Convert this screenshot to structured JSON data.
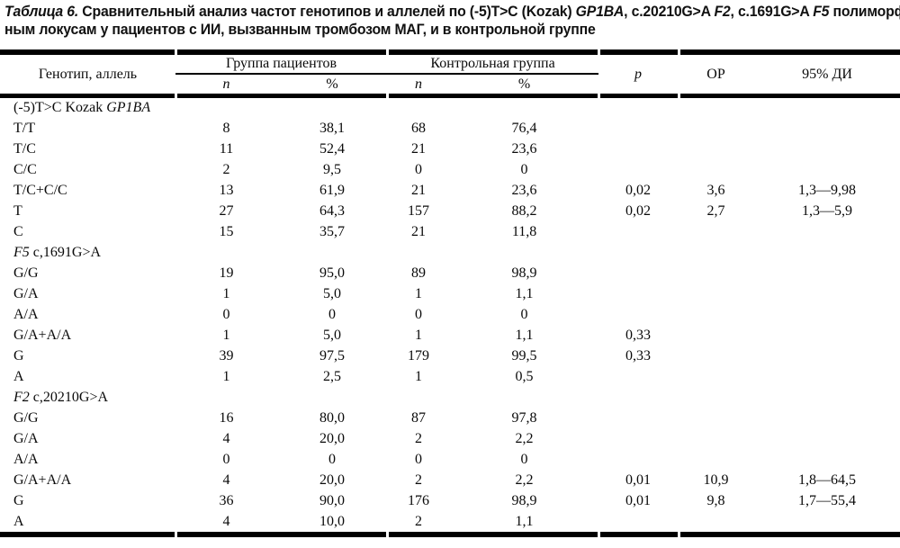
{
  "caption": {
    "lines": [
      [
        {
          "t": "Таблица 6.",
          "it": true,
          "name": "table-number"
        },
        {
          "t": " Сравнительный анализ частот генотипов и аллелей по (-5)T>C (Kozak) ",
          "it": false,
          "name": "caption-text"
        },
        {
          "t": "GP1BA",
          "it": true,
          "name": "gene-name"
        },
        {
          "t": ", c.20210G>A ",
          "it": false,
          "name": "caption-text"
        },
        {
          "t": "F2",
          "it": true,
          "name": "gene-name"
        },
        {
          "t": ", c.1691G>A ",
          "it": false,
          "name": "caption-text"
        },
        {
          "t": "F5",
          "it": true,
          "name": "gene-name"
        },
        {
          "t": " полиморф-",
          "it": false,
          "name": "caption-text"
        }
      ],
      [
        {
          "t": "ным локусам у пациентов с ИИ, вызванным тромбозом МАГ, и в контрольной группе",
          "it": false,
          "name": "caption-text"
        }
      ]
    ]
  },
  "table": {
    "header": {
      "genotype_col": "Генотип, аллель",
      "group_patients": "Группа пациентов",
      "group_control": "Контрольная группа",
      "sub_n": "n",
      "sub_pct": "%",
      "p": "p",
      "or": "ОР",
      "ci": "95% ДИ"
    },
    "column_names": [
      "n-patients",
      "pct-patients",
      "n-control",
      "pct-control",
      "p-value",
      "odds-ratio",
      "confidence-interval"
    ],
    "rows": [
      {
        "type": "section",
        "label": [
          {
            "t": "(-5)T>C Kozak ",
            "it": false
          },
          {
            "t": "GP1BA",
            "it": true
          }
        ],
        "cells": [
          "",
          "",
          "",
          "",
          "",
          "",
          ""
        ]
      },
      {
        "type": "data",
        "label": [
          {
            "t": "T/T",
            "it": false
          }
        ],
        "cells": [
          "8",
          "38,1",
          "68",
          "76,4",
          "",
          "",
          ""
        ]
      },
      {
        "type": "data",
        "label": [
          {
            "t": "T/C",
            "it": false
          }
        ],
        "cells": [
          "11",
          "52,4",
          "21",
          "23,6",
          "",
          "",
          ""
        ]
      },
      {
        "type": "data",
        "label": [
          {
            "t": "C/C",
            "it": false
          }
        ],
        "cells": [
          "2",
          "9,5",
          "0",
          "0",
          "",
          "",
          ""
        ]
      },
      {
        "type": "data",
        "label": [
          {
            "t": "T/C+C/C",
            "it": false
          }
        ],
        "cells": [
          "13",
          "61,9",
          "21",
          "23,6",
          "0,02",
          "3,6",
          "1,3—9,98"
        ]
      },
      {
        "type": "data",
        "label": [
          {
            "t": "T",
            "it": false
          }
        ],
        "cells": [
          "27",
          "64,3",
          "157",
          "88,2",
          "0,02",
          "2,7",
          "1,3—5,9"
        ]
      },
      {
        "type": "data",
        "label": [
          {
            "t": "C",
            "it": false
          }
        ],
        "cells": [
          "15",
          "35,7",
          "21",
          "11,8",
          "",
          "",
          ""
        ]
      },
      {
        "type": "section",
        "label": [
          {
            "t": "F5",
            "it": true
          },
          {
            "t": " c,1691G>A",
            "it": false
          }
        ],
        "cells": [
          "",
          "",
          "",
          "",
          "",
          "",
          ""
        ]
      },
      {
        "type": "data",
        "label": [
          {
            "t": "G/G",
            "it": false
          }
        ],
        "cells": [
          "19",
          "95,0",
          "89",
          "98,9",
          "",
          "",
          ""
        ]
      },
      {
        "type": "data",
        "label": [
          {
            "t": "G/A",
            "it": false
          }
        ],
        "cells": [
          "1",
          "5,0",
          "1",
          "1,1",
          "",
          "",
          ""
        ]
      },
      {
        "type": "data",
        "label": [
          {
            "t": "A/A",
            "it": false
          }
        ],
        "cells": [
          "0",
          "0",
          "0",
          "0",
          "",
          "",
          ""
        ]
      },
      {
        "type": "data",
        "label": [
          {
            "t": "G/A+A/A",
            "it": false
          }
        ],
        "cells": [
          "1",
          "5,0",
          "1",
          "1,1",
          "0,33",
          "",
          ""
        ]
      },
      {
        "type": "data",
        "label": [
          {
            "t": "G",
            "it": false
          }
        ],
        "cells": [
          "39",
          "97,5",
          "179",
          "99,5",
          "0,33",
          "",
          ""
        ]
      },
      {
        "type": "data",
        "label": [
          {
            "t": "A",
            "it": false
          }
        ],
        "cells": [
          "1",
          "2,5",
          "1",
          "0,5",
          "",
          "",
          ""
        ]
      },
      {
        "type": "section",
        "label": [
          {
            "t": "F2",
            "it": true
          },
          {
            "t": " c,20210G>A",
            "it": false
          }
        ],
        "cells": [
          "",
          "",
          "",
          "",
          "",
          "",
          ""
        ]
      },
      {
        "type": "data",
        "label": [
          {
            "t": "G/G",
            "it": false
          }
        ],
        "cells": [
          "16",
          "80,0",
          "87",
          "97,8",
          "",
          "",
          ""
        ]
      },
      {
        "type": "data",
        "label": [
          {
            "t": "G/A",
            "it": false
          }
        ],
        "cells": [
          "4",
          "20,0",
          "2",
          "2,2",
          "",
          "",
          ""
        ]
      },
      {
        "type": "data",
        "label": [
          {
            "t": "A/A",
            "it": false
          }
        ],
        "cells": [
          "0",
          "0",
          "0",
          "0",
          "",
          "",
          ""
        ]
      },
      {
        "type": "data",
        "label": [
          {
            "t": "G/A+A/A",
            "it": false
          }
        ],
        "cells": [
          "4",
          "20,0",
          "2",
          "2,2",
          "0,01",
          "10,9",
          "1,8—64,5"
        ]
      },
      {
        "type": "data",
        "label": [
          {
            "t": "G",
            "it": false
          }
        ],
        "cells": [
          "36",
          "90,0",
          "176",
          "98,9",
          "0,01",
          "9,8",
          "1,7—55,4"
        ]
      },
      {
        "type": "data",
        "label": [
          {
            "t": "A",
            "it": false
          }
        ],
        "cells": [
          "4",
          "10,0",
          "2",
          "1,1",
          "",
          "",
          ""
        ]
      }
    ]
  },
  "colors": {
    "text": "#0a0a0a",
    "rule": "#000000",
    "background": "#ffffff"
  }
}
